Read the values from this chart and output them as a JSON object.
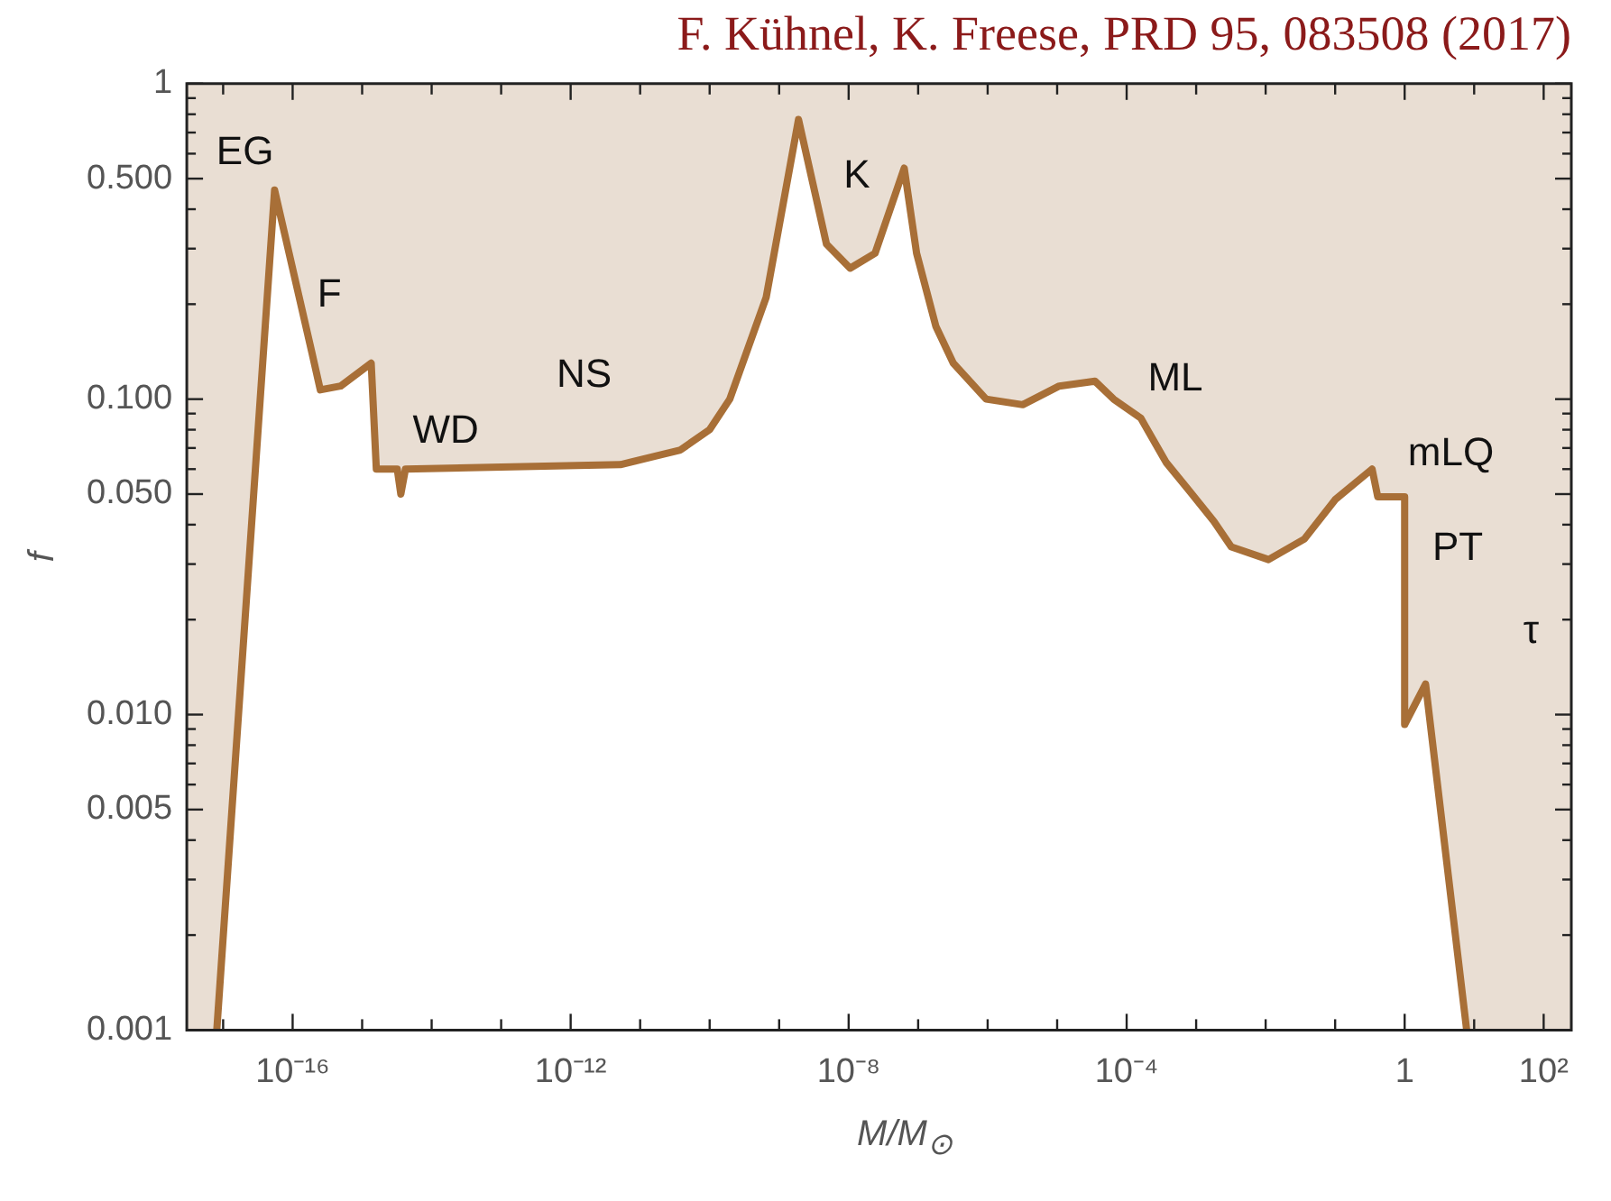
{
  "chart_data": {
    "type": "area",
    "title": "F. Kühnel, K. Freese, PRD 95, 083508 (2017)",
    "xlabel": "M/M$_{⊙}$",
    "ylabel": "f",
    "log": "xy",
    "x": [
      8.1e-18,
      5.5e-17,
      1.9e-16,
      2.5e-16,
      4.9e-16,
      1.35e-15,
      1.6e-15,
      3.2e-15,
      3.6e-15,
      4.2e-15,
      5.2e-12,
      3.8e-11,
      1e-10,
      1.95e-10,
      6.5e-10,
      1.9e-09,
      4.8e-09,
      1.05e-08,
      2.4e-08,
      6.3e-08,
      9.5e-08,
      1.8e-07,
      3.2e-07,
      9.5e-07,
      3.2e-06,
      1.07e-05,
      3.5e-05,
      6.5e-05,
      0.00016,
      0.00037,
      0.00081,
      0.0018,
      0.0032,
      0.011,
      0.036,
      0.1,
      0.34,
      0.41,
      1,
      1,
      2.0,
      7.8
    ],
    "series": [
      {
        "color": "#a86f37",
        "values": [
          0.001,
          0.46,
          0.14,
          0.107,
          0.11,
          0.13,
          0.06,
          0.06,
          0.05,
          0.06,
          0.062,
          0.069,
          0.08,
          0.1,
          0.21,
          0.77,
          0.31,
          0.26,
          0.29,
          0.54,
          0.29,
          0.17,
          0.13,
          0.1,
          0.096,
          0.11,
          0.114,
          0.1,
          0.087,
          0.063,
          0.051,
          0.041,
          0.034,
          0.031,
          0.036,
          0.048,
          0.06,
          0.049,
          0.049,
          0.0093,
          0.0125,
          0.001
        ]
      }
    ],
    "xlim": [
      3.2e-18,
      250
    ],
    "ylim": [
      0.001,
      1
    ],
    "xticks": [
      {
        "value": 1e-17,
        "label": null
      },
      {
        "value": 1e-16,
        "label": "10⁻¹⁶"
      },
      {
        "value": 1e-15,
        "label": null
      },
      {
        "value": 1e-14,
        "label": null
      },
      {
        "value": 1e-13,
        "label": null
      },
      {
        "value": 1e-12,
        "label": "10⁻¹²"
      },
      {
        "value": 1e-11,
        "label": null
      },
      {
        "value": 1e-10,
        "label": null
      },
      {
        "value": 1e-09,
        "label": null
      },
      {
        "value": 1e-08,
        "label": "10⁻⁸"
      },
      {
        "value": 1e-07,
        "label": null
      },
      {
        "value": 1e-06,
        "label": null
      },
      {
        "value": 1e-05,
        "label": null
      },
      {
        "value": 0.0001,
        "label": "10⁻⁴"
      },
      {
        "value": 0.001,
        "label": null
      },
      {
        "value": 0.01,
        "label": null
      },
      {
        "value": 0.1,
        "label": null
      },
      {
        "value": 1,
        "label": "1"
      },
      {
        "value": 10,
        "label": null
      },
      {
        "value": 100,
        "label": "10²"
      }
    ],
    "yticks": [
      {
        "value": 0.001,
        "label": "0.001"
      },
      {
        "value": 0.002,
        "label": null
      },
      {
        "value": 0.003,
        "label": null
      },
      {
        "value": 0.004,
        "label": null
      },
      {
        "value": 0.005,
        "label": "0.005"
      },
      {
        "value": 0.006,
        "label": null
      },
      {
        "value": 0.007,
        "label": null
      },
      {
        "value": 0.008,
        "label": null
      },
      {
        "value": 0.009,
        "label": null
      },
      {
        "value": 0.01,
        "label": "0.010"
      },
      {
        "value": 0.02,
        "label": null
      },
      {
        "value": 0.03,
        "label": null
      },
      {
        "value": 0.04,
        "label": null
      },
      {
        "value": 0.05,
        "label": "0.050"
      },
      {
        "value": 0.06,
        "label": null
      },
      {
        "value": 0.07,
        "label": null
      },
      {
        "value": 0.08,
        "label": null
      },
      {
        "value": 0.09,
        "label": null
      },
      {
        "value": 0.1,
        "label": "0.100"
      },
      {
        "value": 0.2,
        "label": null
      },
      {
        "value": 0.3,
        "label": null
      },
      {
        "value": 0.4,
        "label": null
      },
      {
        "value": 0.5,
        "label": "0.500"
      },
      {
        "value": 0.6,
        "label": null
      },
      {
        "value": 0.7,
        "label": null
      },
      {
        "value": 0.8,
        "label": null
      },
      {
        "value": 0.9,
        "label": null
      },
      {
        "value": 1,
        "label": "1"
      }
    ],
    "annotations": [
      "EG",
      "F",
      "WD",
      "NS",
      "K",
      "ML",
      "mLQ",
      "PT",
      "τ"
    ],
    "legend": false
  }
}
